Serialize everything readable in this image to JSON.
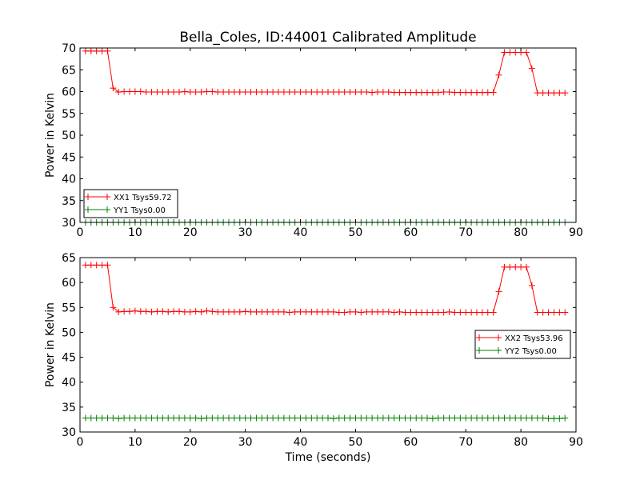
{
  "chart_data": [
    {
      "type": "line",
      "title": "Bella_Coles, ID:44001 Calibrated Amplitude",
      "xlabel": "",
      "ylabel": "Power in Kelvin",
      "xlim": [
        0,
        90
      ],
      "ylim": [
        30,
        70
      ],
      "xticks": [
        "0",
        "10",
        "20",
        "30",
        "40",
        "50",
        "60",
        "70",
        "80",
        "90"
      ],
      "yticks": [
        "30",
        "35",
        "40",
        "45",
        "50",
        "55",
        "60",
        "65",
        "70"
      ],
      "legend_position": "lower-left",
      "grid": false,
      "marker": "plus",
      "series": [
        {
          "name": "XX1 Tsys59.72",
          "color": "#ff0000",
          "x": [
            1,
            2,
            3,
            4,
            5,
            6,
            7,
            8,
            9,
            10,
            11,
            12,
            13,
            14,
            15,
            16,
            17,
            18,
            19,
            20,
            21,
            22,
            23,
            24,
            25,
            26,
            27,
            28,
            29,
            30,
            31,
            32,
            33,
            34,
            35,
            36,
            37,
            38,
            39,
            40,
            41,
            42,
            43,
            44,
            45,
            46,
            47,
            48,
            49,
            50,
            51,
            52,
            53,
            54,
            55,
            56,
            57,
            58,
            59,
            60,
            61,
            62,
            63,
            64,
            65,
            66,
            67,
            68,
            69,
            70,
            71,
            72,
            73,
            74,
            75,
            76,
            77,
            78,
            79,
            80,
            81,
            82,
            83,
            84,
            85,
            86,
            87,
            88
          ],
          "y": [
            69.3,
            69.3,
            69.3,
            69.3,
            69.3,
            60.8,
            59.9,
            60.0,
            60.0,
            60.0,
            60.0,
            59.9,
            59.9,
            59.9,
            59.9,
            59.9,
            59.9,
            59.9,
            60.0,
            59.9,
            59.9,
            59.9,
            60.0,
            60.0,
            59.9,
            59.9,
            59.9,
            59.9,
            59.9,
            59.9,
            59.9,
            59.9,
            59.9,
            59.9,
            59.9,
            59.9,
            59.9,
            59.9,
            59.9,
            59.9,
            59.9,
            59.9,
            59.9,
            59.9,
            59.9,
            59.9,
            59.9,
            59.9,
            59.9,
            59.9,
            59.9,
            59.9,
            59.8,
            59.9,
            59.9,
            59.9,
            59.8,
            59.8,
            59.8,
            59.8,
            59.8,
            59.8,
            59.8,
            59.8,
            59.8,
            59.9,
            59.9,
            59.8,
            59.8,
            59.8,
            59.8,
            59.8,
            59.8,
            59.8,
            59.8,
            63.8,
            69.0,
            69.0,
            69.0,
            69.0,
            69.0,
            65.3,
            59.7,
            59.7,
            59.7,
            59.7,
            59.7,
            59.7
          ]
        },
        {
          "name": "YY1 Tsys0.00",
          "color": "#008000",
          "x": [
            1,
            2,
            3,
            4,
            5,
            6,
            7,
            8,
            9,
            10,
            11,
            12,
            13,
            14,
            15,
            16,
            17,
            18,
            19,
            20,
            21,
            22,
            23,
            24,
            25,
            26,
            27,
            28,
            29,
            30,
            31,
            32,
            33,
            34,
            35,
            36,
            37,
            38,
            39,
            40,
            41,
            42,
            43,
            44,
            45,
            46,
            47,
            48,
            49,
            50,
            51,
            52,
            53,
            54,
            55,
            56,
            57,
            58,
            59,
            60,
            61,
            62,
            63,
            64,
            65,
            66,
            67,
            68,
            69,
            70,
            71,
            72,
            73,
            74,
            75,
            76,
            77,
            78,
            79,
            80,
            81,
            82,
            83,
            84,
            85,
            86,
            87,
            88
          ],
          "y": [
            30.0,
            30.0,
            30.0,
            30.0,
            30.0,
            30.0,
            30.0,
            30.0,
            30.0,
            30.0,
            30.0,
            30.0,
            30.0,
            30.0,
            30.0,
            30.0,
            30.0,
            30.0,
            30.0,
            30.0,
            30.0,
            30.0,
            30.0,
            30.0,
            30.0,
            30.0,
            30.0,
            30.0,
            30.0,
            30.0,
            30.0,
            30.0,
            30.0,
            30.0,
            30.0,
            30.0,
            30.0,
            30.0,
            30.0,
            30.0,
            30.0,
            30.0,
            30.0,
            30.0,
            30.0,
            30.0,
            30.0,
            30.0,
            30.0,
            30.0,
            30.0,
            30.0,
            30.0,
            30.0,
            30.0,
            30.0,
            30.0,
            30.0,
            30.0,
            30.0,
            30.0,
            30.0,
            30.0,
            30.0,
            30.0,
            30.0,
            30.0,
            30.0,
            30.0,
            30.0,
            30.0,
            30.0,
            30.0,
            30.0,
            30.0,
            30.0,
            30.0,
            30.0,
            30.0,
            30.0,
            30.0,
            30.0,
            30.0,
            30.0,
            30.0,
            30.0,
            30.0,
            30.0
          ]
        }
      ]
    },
    {
      "type": "line",
      "title": "",
      "xlabel": "Time (seconds)",
      "ylabel": "Power in Kelvin",
      "xlim": [
        0,
        90
      ],
      "ylim": [
        30,
        65
      ],
      "xticks": [
        "0",
        "10",
        "20",
        "30",
        "40",
        "50",
        "60",
        "70",
        "80",
        "90"
      ],
      "yticks": [
        "30",
        "35",
        "40",
        "45",
        "50",
        "55",
        "60",
        "65"
      ],
      "legend_position": "center-right",
      "grid": false,
      "marker": "plus",
      "series": [
        {
          "name": "XX2 Tsys53.96",
          "color": "#ff0000",
          "x": [
            1,
            2,
            3,
            4,
            5,
            6,
            7,
            8,
            9,
            10,
            11,
            12,
            13,
            14,
            15,
            16,
            17,
            18,
            19,
            20,
            21,
            22,
            23,
            24,
            25,
            26,
            27,
            28,
            29,
            30,
            31,
            32,
            33,
            34,
            35,
            36,
            37,
            38,
            39,
            40,
            41,
            42,
            43,
            44,
            45,
            46,
            47,
            48,
            49,
            50,
            51,
            52,
            53,
            54,
            55,
            56,
            57,
            58,
            59,
            60,
            61,
            62,
            63,
            64,
            65,
            66,
            67,
            68,
            69,
            70,
            71,
            72,
            73,
            74,
            75,
            76,
            77,
            78,
            79,
            80,
            81,
            82,
            83,
            84,
            85,
            86,
            87,
            88
          ],
          "y": [
            63.5,
            63.5,
            63.5,
            63.5,
            63.5,
            55.0,
            54.1,
            54.2,
            54.2,
            54.3,
            54.2,
            54.2,
            54.1,
            54.2,
            54.2,
            54.1,
            54.2,
            54.2,
            54.1,
            54.1,
            54.2,
            54.1,
            54.3,
            54.2,
            54.1,
            54.1,
            54.1,
            54.1,
            54.1,
            54.2,
            54.1,
            54.1,
            54.1,
            54.1,
            54.1,
            54.1,
            54.1,
            54.0,
            54.1,
            54.1,
            54.1,
            54.1,
            54.1,
            54.1,
            54.1,
            54.1,
            54.0,
            54.0,
            54.1,
            54.1,
            54.0,
            54.1,
            54.1,
            54.1,
            54.1,
            54.1,
            54.0,
            54.1,
            54.0,
            54.0,
            54.0,
            54.0,
            54.0,
            54.0,
            54.0,
            54.0,
            54.1,
            54.0,
            54.0,
            54.0,
            54.0,
            54.0,
            54.0,
            54.0,
            54.0,
            58.2,
            63.1,
            63.1,
            63.1,
            63.1,
            63.1,
            59.4,
            54.0,
            54.0,
            54.0,
            54.0,
            54.0,
            54.0
          ]
        },
        {
          "name": "YY2 Tsys0.00",
          "color": "#008000",
          "x": [
            1,
            2,
            3,
            4,
            5,
            6,
            7,
            8,
            9,
            10,
            11,
            12,
            13,
            14,
            15,
            16,
            17,
            18,
            19,
            20,
            21,
            22,
            23,
            24,
            25,
            26,
            27,
            28,
            29,
            30,
            31,
            32,
            33,
            34,
            35,
            36,
            37,
            38,
            39,
            40,
            41,
            42,
            43,
            44,
            45,
            46,
            47,
            48,
            49,
            50,
            51,
            52,
            53,
            54,
            55,
            56,
            57,
            58,
            59,
            60,
            61,
            62,
            63,
            64,
            65,
            66,
            67,
            68,
            69,
            70,
            71,
            72,
            73,
            74,
            75,
            76,
            77,
            78,
            79,
            80,
            81,
            82,
            83,
            84,
            85,
            86,
            87,
            88
          ],
          "y": [
            32.8,
            32.8,
            32.8,
            32.8,
            32.8,
            32.8,
            32.7,
            32.8,
            32.8,
            32.8,
            32.8,
            32.8,
            32.8,
            32.8,
            32.8,
            32.8,
            32.8,
            32.8,
            32.8,
            32.8,
            32.8,
            32.7,
            32.8,
            32.8,
            32.8,
            32.8,
            32.8,
            32.8,
            32.8,
            32.8,
            32.8,
            32.8,
            32.8,
            32.8,
            32.8,
            32.8,
            32.8,
            32.8,
            32.8,
            32.8,
            32.8,
            32.8,
            32.8,
            32.8,
            32.8,
            32.7,
            32.8,
            32.8,
            32.8,
            32.8,
            32.8,
            32.8,
            32.8,
            32.8,
            32.8,
            32.8,
            32.8,
            32.8,
            32.8,
            32.8,
            32.8,
            32.8,
            32.8,
            32.7,
            32.8,
            32.8,
            32.8,
            32.8,
            32.8,
            32.8,
            32.8,
            32.8,
            32.8,
            32.8,
            32.8,
            32.8,
            32.8,
            32.8,
            32.8,
            32.8,
            32.8,
            32.8,
            32.8,
            32.8,
            32.7,
            32.7,
            32.7,
            32.8
          ]
        }
      ]
    }
  ]
}
